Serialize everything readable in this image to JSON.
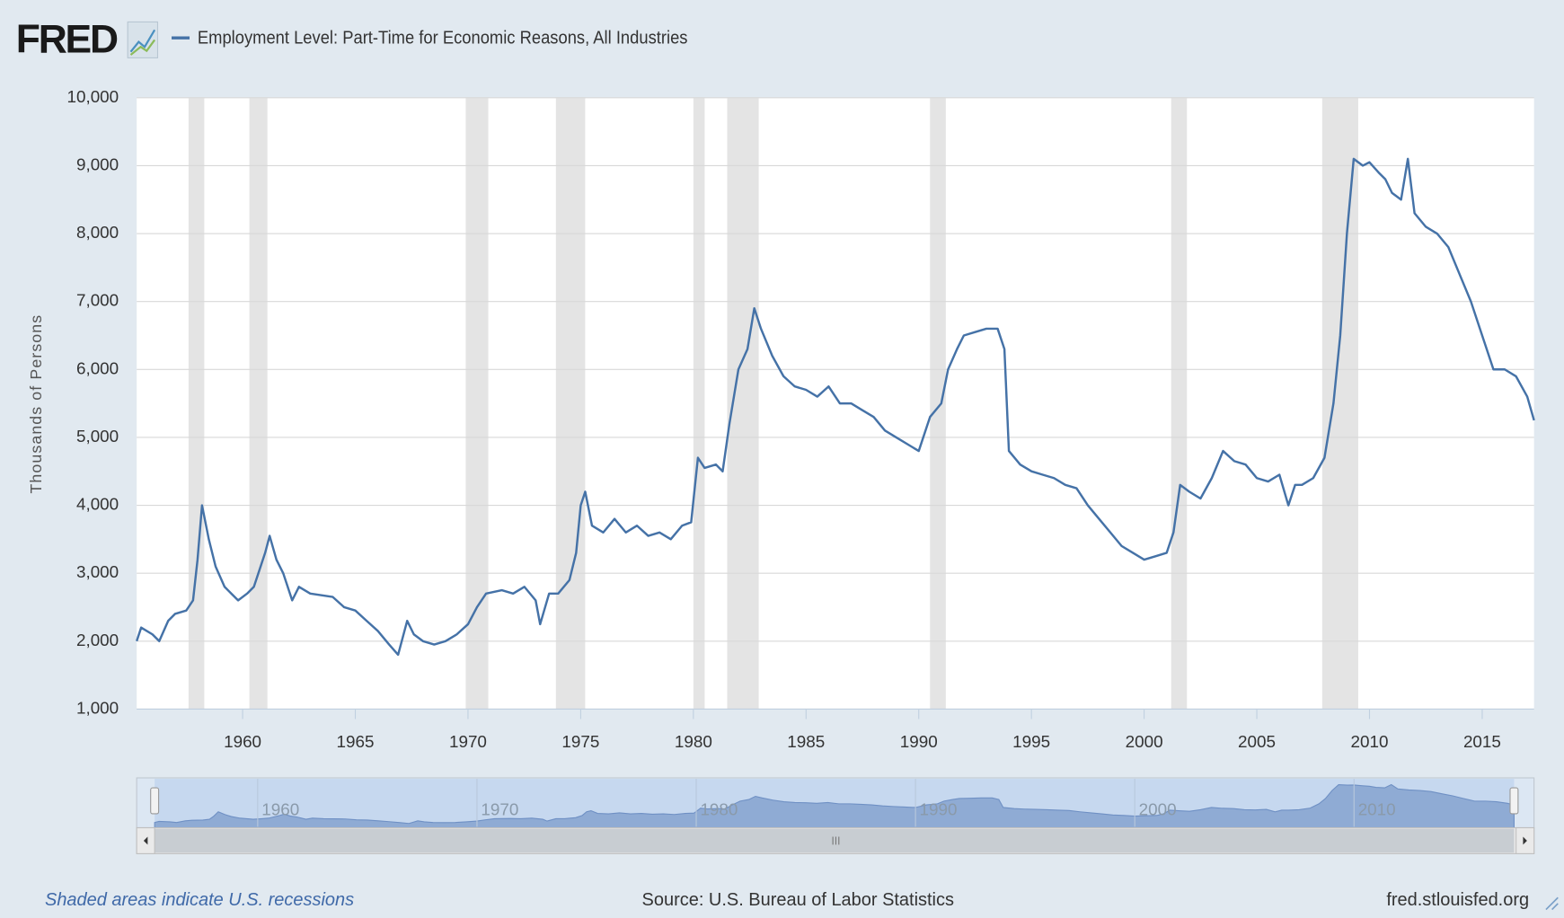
{
  "chart_data": {
    "type": "line",
    "logo": "FRED",
    "title": "Employment Level: Part-Time for Economic Reasons, All Industries",
    "y_label": "Thousands of Persons",
    "note": "Shaded areas indicate U.S. recessions",
    "source": "Source: U.S. Bureau of Labor Statistics",
    "site": "fred.stlouisfed.org",
    "xlim": [
      1955.3,
      2017.3
    ],
    "xticks": [
      1960,
      1965,
      1970,
      1975,
      1980,
      1985,
      1990,
      1995,
      2000,
      2005,
      2010,
      2015
    ],
    "ylim": [
      1000,
      10000
    ],
    "yticks": [
      {
        "value": 1000,
        "label": "1,000"
      },
      {
        "value": 2000,
        "label": "2,000"
      },
      {
        "value": 3000,
        "label": "3,000"
      },
      {
        "value": 4000,
        "label": "4,000"
      },
      {
        "value": 5000,
        "label": "5,000"
      },
      {
        "value": 6000,
        "label": "6,000"
      },
      {
        "value": 7000,
        "label": "7,000"
      },
      {
        "value": 8000,
        "label": "8,000"
      },
      {
        "value": 9000,
        "label": "9,000"
      },
      {
        "value": 10000,
        "label": "10,000"
      }
    ],
    "grid": true,
    "navigator_xticks": [
      1960,
      1970,
      1980,
      1990,
      2000,
      2010
    ],
    "recessions": [
      [
        1957.6,
        1958.3
      ],
      [
        1960.3,
        1961.1
      ],
      [
        1969.9,
        1970.9
      ],
      [
        1973.9,
        1975.2
      ],
      [
        1980.0,
        1980.5
      ],
      [
        1981.5,
        1982.9
      ],
      [
        1990.5,
        1991.2
      ],
      [
        2001.2,
        2001.9
      ],
      [
        2007.9,
        2009.5
      ]
    ],
    "x": [
      1955.3,
      1955.5,
      1956,
      1956.3,
      1956.7,
      1957,
      1957.5,
      1957.8,
      1958.0,
      1958.2,
      1958.5,
      1958.8,
      1959.2,
      1959.5,
      1959.8,
      1960.2,
      1960.5,
      1961.0,
      1961.2,
      1961.5,
      1961.8,
      1962.2,
      1962.5,
      1963,
      1964,
      1964.5,
      1965,
      1965.5,
      1966,
      1966.5,
      1966.9,
      1967.3,
      1967.6,
      1968,
      1968.5,
      1969,
      1969.5,
      1970,
      1970.4,
      1970.8,
      1971.5,
      1972,
      1972.5,
      1973,
      1973.2,
      1973.6,
      1974,
      1974.5,
      1974.8,
      1975.0,
      1975.2,
      1975.5,
      1976,
      1976.5,
      1977,
      1977.5,
      1978,
      1978.5,
      1979,
      1979.5,
      1979.9,
      1980.2,
      1980.5,
      1981,
      1981.3,
      1981.6,
      1982,
      1982.4,
      1982.7,
      1983,
      1983.5,
      1984,
      1984.5,
      1985,
      1985.5,
      1986,
      1986.5,
      1987,
      1987.5,
      1988,
      1988.5,
      1989,
      1989.5,
      1990,
      1990.5,
      1991,
      1991.3,
      1991.7,
      1992,
      1992.5,
      1993,
      1993.5,
      1993.8,
      1994.0,
      1994.5,
      1995,
      1995.5,
      1996,
      1996.5,
      1997,
      1997.5,
      1998,
      1998.5,
      1999,
      1999.5,
      2000,
      2000.5,
      2001,
      2001.3,
      2001.6,
      2002,
      2002.5,
      2003,
      2003.5,
      2004,
      2004.5,
      2005,
      2005.5,
      2006,
      2006.4,
      2006.7,
      2007,
      2007.5,
      2008,
      2008.4,
      2008.7,
      2009.0,
      2009.3,
      2009.7,
      2010,
      2010.4,
      2010.7,
      2011,
      2011.4,
      2011.7,
      2012,
      2012.5,
      2013,
      2013.5,
      2014,
      2014.5,
      2015,
      2015.5,
      2016,
      2016.5,
      2017,
      2017.3
    ],
    "series": [
      {
        "name": "Employment Level: Part-Time for Economic Reasons, All Industries",
        "color": "#4572a7",
        "values": [
          2000,
          2200,
          2100,
          2000,
          2300,
          2400,
          2450,
          2600,
          3200,
          4000,
          3500,
          3100,
          2800,
          2700,
          2600,
          2700,
          2800,
          3300,
          3550,
          3200,
          3000,
          2600,
          2800,
          2700,
          2650,
          2500,
          2450,
          2300,
          2150,
          1950,
          1800,
          2300,
          2100,
          2000,
          1950,
          2000,
          2100,
          2250,
          2500,
          2700,
          2750,
          2700,
          2800,
          2600,
          2250,
          2700,
          2700,
          2900,
          3300,
          4000,
          4200,
          3700,
          3600,
          3800,
          3600,
          3700,
          3550,
          3600,
          3500,
          3700,
          3750,
          4700,
          4550,
          4600,
          4500,
          5200,
          6000,
          6300,
          6900,
          6600,
          6200,
          5900,
          5750,
          5700,
          5600,
          5750,
          5500,
          5500,
          5400,
          5300,
          5100,
          5000,
          4900,
          4800,
          5300,
          5500,
          6000,
          6300,
          6500,
          6550,
          6600,
          6600,
          6300,
          4800,
          4600,
          4500,
          4450,
          4400,
          4300,
          4250,
          4000,
          3800,
          3600,
          3400,
          3300,
          3200,
          3250,
          3300,
          3600,
          4300,
          4200,
          4100,
          4400,
          4800,
          4650,
          4600,
          4400,
          4350,
          4450,
          4000,
          4300,
          4300,
          4400,
          4700,
          5500,
          6500,
          8000,
          9100,
          9000,
          9050,
          8900,
          8800,
          8600,
          8500,
          9100,
          8300,
          8100,
          8000,
          7800,
          7400,
          7000,
          6500,
          6000,
          6000,
          5900,
          5600,
          5250
        ]
      }
    ]
  }
}
